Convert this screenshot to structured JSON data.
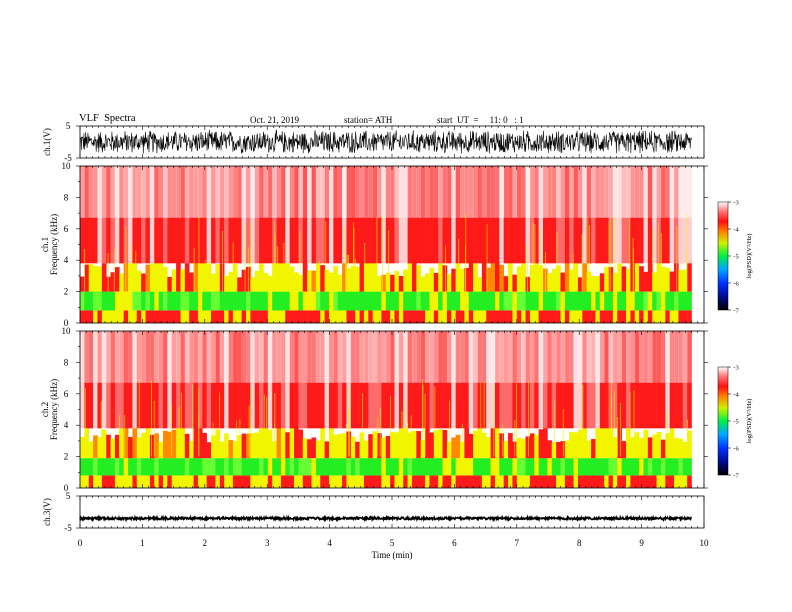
{
  "header": {
    "title": "VLF  Spectra",
    "date": "Oct. 21, 2019",
    "station": "station= ATH",
    "start": "start  UT  =     11: 0   : 1"
  },
  "chart_data": [
    {
      "type": "line",
      "id": "ch1",
      "ylabel": "ch.1(V)",
      "ylim": [
        -5,
        5
      ],
      "y_ticklabels": [
        "5",
        "-5"
      ],
      "xlim": [
        0,
        10
      ],
      "description_values": {
        "amplitude_min": -4,
        "amplitude_max": 4,
        "duration_min": 9.8
      }
    },
    {
      "type": "heatmap",
      "id": "ch1_spec",
      "ylabel": "ch.1\nFrequency  (kHz)",
      "ylabel_lines": [
        "ch.1",
        "Frequency  (kHz)"
      ],
      "ylim": [
        0,
        10
      ],
      "y_ticklabels": [
        "0",
        "2",
        "4",
        "6",
        "8",
        "10"
      ],
      "xlim": [
        0,
        10
      ],
      "bands_khz": [
        {
          "from": 0,
          "to": 0.8,
          "level": "red-yellow"
        },
        {
          "from": 0.8,
          "to": 2.0,
          "level": "green"
        },
        {
          "from": 2.0,
          "to": 3.8,
          "level": "yellow-red"
        },
        {
          "from": 3.8,
          "to": 10,
          "level": "red-white"
        }
      ],
      "colorbar": {
        "label": "log(PSD)(V²/Hz)",
        "ticks": [
          "-3",
          "-4",
          "-5",
          "-6",
          "-7"
        ],
        "range": [
          -7,
          -3
        ]
      }
    },
    {
      "type": "heatmap",
      "id": "ch2_spec",
      "ylabel": "ch.2\nFrequency  (kHz)",
      "ylabel_lines": [
        "ch.2",
        "Frequency  (kHz)"
      ],
      "ylim": [
        0,
        10
      ],
      "y_ticklabels": [
        "0",
        "2",
        "4",
        "6",
        "8",
        "10"
      ],
      "xlim": [
        0,
        10
      ],
      "bands_khz": [
        {
          "from": 0,
          "to": 0.8,
          "level": "red-yellow"
        },
        {
          "from": 0.8,
          "to": 1.9,
          "level": "green"
        },
        {
          "from": 1.9,
          "to": 3.8,
          "level": "yellow-red"
        },
        {
          "from": 3.8,
          "to": 10,
          "level": "red-white"
        }
      ],
      "colorbar": {
        "label": "log(PSD)(V²/Hz)",
        "ticks": [
          "-3",
          "-4",
          "-5",
          "-6",
          "-7"
        ],
        "range": [
          -7,
          -3
        ]
      }
    },
    {
      "type": "line",
      "id": "ch3",
      "ylabel": "ch.3(V)",
      "ylim": [
        -5,
        5
      ],
      "y_ticklabels": [
        "5",
        "-5"
      ],
      "xlim": [
        0,
        10
      ],
      "description_values": {
        "level": -2,
        "duration_min": 9.8
      }
    }
  ],
  "x_axis": {
    "label": "Time  (min)",
    "ticklabels": [
      "0",
      "1",
      "2",
      "3",
      "4",
      "5",
      "6",
      "7",
      "8",
      "9",
      "10"
    ]
  },
  "colors": {
    "trace": "#000000",
    "spec_red": "#ff1a1a",
    "spec_yellow": "#f2f500",
    "spec_green": "#22ee22"
  }
}
